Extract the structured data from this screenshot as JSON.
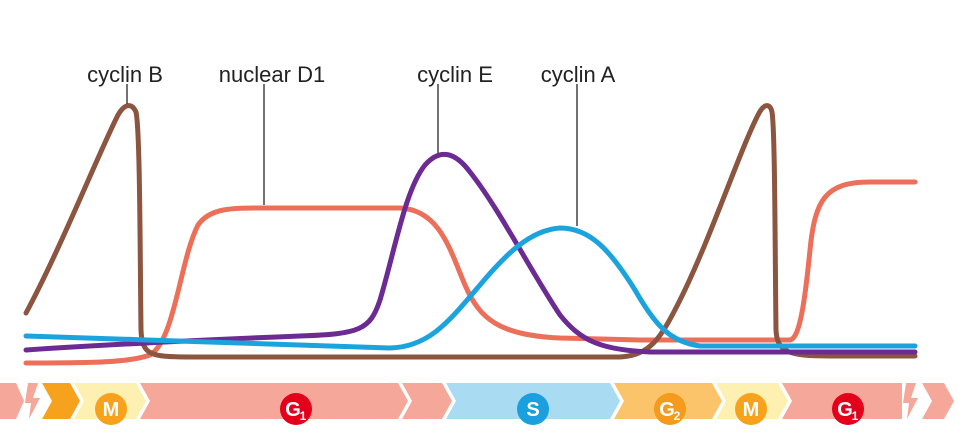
{
  "labels": {
    "cyclin_b": "cyclin B",
    "nuclear_d1": "nuclear D1",
    "cyclin_e": "cyclin E",
    "cyclin_a": "cyclin A"
  },
  "phases": [
    {
      "letter": "M",
      "sub": ""
    },
    {
      "letter": "G",
      "sub": "1"
    },
    {
      "letter": "S",
      "sub": ""
    },
    {
      "letter": "G",
      "sub": "2"
    },
    {
      "letter": "M",
      "sub": ""
    },
    {
      "letter": "G",
      "sub": "1"
    }
  ],
  "colors": {
    "cyclin_b": "#8b5540",
    "nuclear_d1": "#ec6f59",
    "cyclin_e": "#6c2a93",
    "cyclin_a": "#1ba3de",
    "phase_m": "#f7a21d",
    "phase_m_bg": "#fef0b0",
    "phase_g1": "#f5a79a",
    "phase_g1_badge": "#e2001a",
    "phase_s": "#a9dcf3",
    "phase_s_badge": "#1b9fde",
    "phase_g2": "#f7a21d",
    "phase_g2_badge": "#f49a1c"
  }
}
